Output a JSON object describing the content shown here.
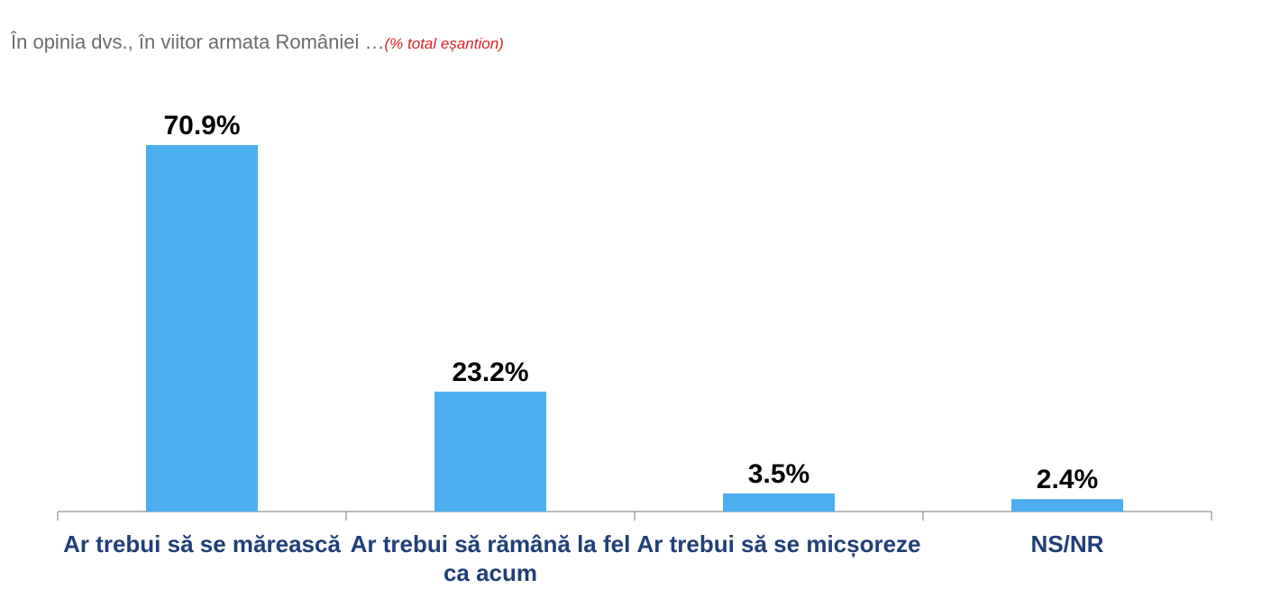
{
  "chart_data": {
    "type": "bar",
    "title": "În opinia dvs., în viitor armata României …",
    "subtitle": "(% total eșantion)",
    "categories": [
      "Ar trebui să se mărească",
      "Ar trebui să rămână la fel ca acum",
      "Ar trebui să se micșoreze",
      "NS/NR"
    ],
    "values": [
      70.9,
      23.2,
      3.5,
      2.4
    ],
    "value_labels": [
      "70.9%",
      "23.2%",
      "3.5%",
      "2.4%"
    ],
    "color": "#4daeef"
  }
}
